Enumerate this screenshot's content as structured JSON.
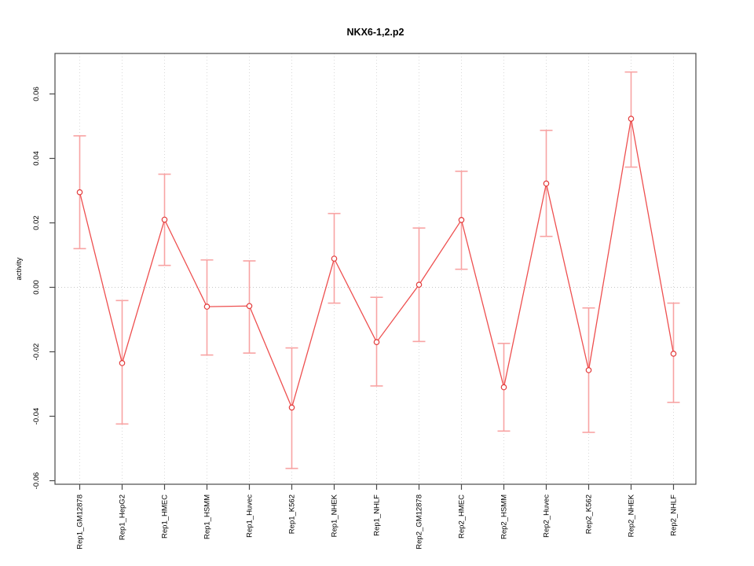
{
  "chart_data": {
    "type": "line",
    "title": "NKX6-1,2.p2",
    "ylabel": "activity",
    "xlabel": "",
    "categories": [
      "Rep1_GM12878",
      "Rep1_HepG2",
      "Rep1_HMEC",
      "Rep1_HSMM",
      "Rep1_Huvec",
      "Rep1_K562",
      "Rep1_NHEK",
      "Rep1_NHLF",
      "Rep2_GM12878",
      "Rep2_HMEC",
      "Rep2_HSMM",
      "Rep2_Huvec",
      "Rep2_K562",
      "Rep2_NHEK",
      "Rep2_NHLF"
    ],
    "series": [
      {
        "name": "activity",
        "values": [
          0.0295,
          -0.0235,
          0.021,
          -0.006,
          -0.0058,
          -0.0373,
          0.0089,
          -0.017,
          0.0008,
          0.0209,
          -0.031,
          0.0322,
          -0.0257,
          0.0523,
          -0.0206
        ],
        "error_high": [
          0.047,
          -0.0041,
          0.0351,
          0.0085,
          0.0082,
          -0.0188,
          0.0229,
          -0.0031,
          0.0184,
          0.036,
          -0.0174,
          0.0487,
          -0.0064,
          0.0668,
          -0.0049
        ],
        "error_low": [
          0.012,
          -0.0424,
          0.0068,
          -0.021,
          -0.0204,
          -0.0562,
          -0.0049,
          -0.0306,
          -0.0168,
          0.0056,
          -0.0446,
          0.0158,
          -0.045,
          0.0373,
          -0.0357
        ]
      }
    ],
    "yticks": [
      0.06,
      0.04,
      0.02,
      0.0,
      -0.02,
      -0.04,
      -0.06
    ],
    "ytick_labels": [
      "0.06",
      "0.04",
      "0.02",
      "0.00",
      "-0.02",
      "-0.04",
      "-0.06"
    ],
    "ylim": [
      -0.0611,
      0.0726
    ],
    "grid": "vertical dotted gridline at each category; dotted horizontal line at zero",
    "legend": "none",
    "colors": {
      "line": "#ee4f4f",
      "error_bar": "#f8a3a3",
      "marker_stroke": "#e23c3c",
      "marker_fill": "#ffffff",
      "grid": "#d9d9d9",
      "zero_line": "#c6c6c6",
      "axis": "#4a4a4a",
      "text": "#000000"
    }
  }
}
